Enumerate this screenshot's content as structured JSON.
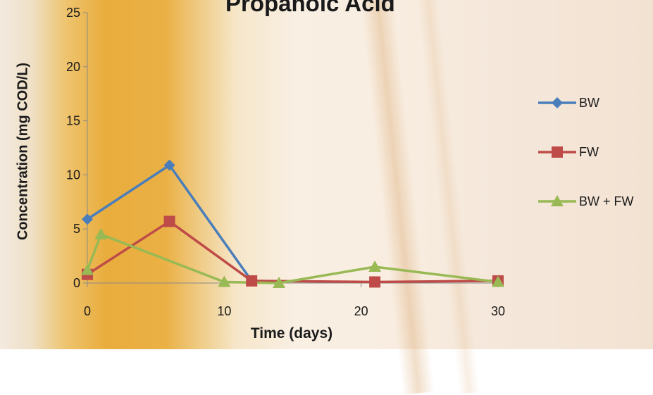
{
  "chart_data": {
    "type": "line",
    "title": "Propanoic Acid",
    "xlabel": "Time (days)",
    "ylabel": "Concentration (mg COD/L)",
    "xlim": [
      0,
      30
    ],
    "ylim": [
      0,
      25
    ],
    "x_ticks": [
      "0",
      "10",
      "20",
      "30"
    ],
    "y_ticks": [
      "0",
      "5",
      "10",
      "15",
      "20",
      "25"
    ],
    "grid": false,
    "legend_position": "right",
    "series": [
      {
        "name": "BW",
        "color": "#4a7ebb",
        "marker": "diamond",
        "x": [
          0,
          6,
          12
        ],
        "y": [
          5.9,
          10.9,
          0.2
        ]
      },
      {
        "name": "FW",
        "color": "#be4b48",
        "marker": "square",
        "x": [
          0,
          6,
          12,
          21,
          30
        ],
        "y": [
          0.8,
          5.7,
          0.2,
          0.1,
          0.2
        ]
      },
      {
        "name": "BW + FW",
        "color": "#98b954",
        "marker": "triangle",
        "x": [
          0,
          1,
          10,
          14,
          21,
          30
        ],
        "y": [
          1.2,
          4.5,
          0.1,
          0.0,
          1.5,
          0.1
        ]
      }
    ]
  }
}
